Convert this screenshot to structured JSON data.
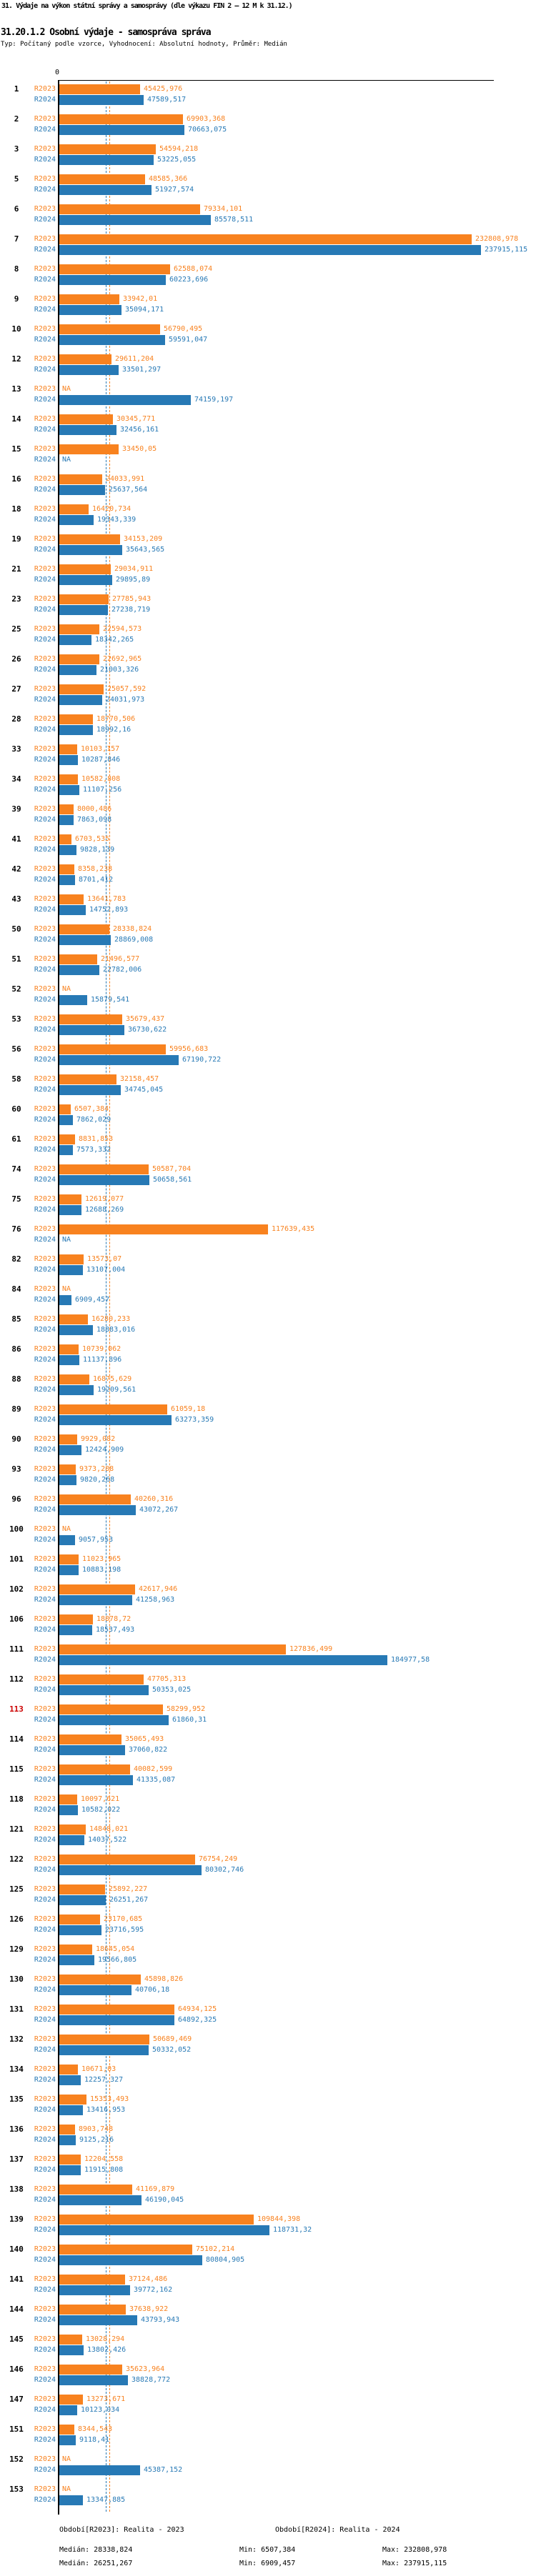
{
  "header": {
    "title": "31. Výdaje na výkon státní správy a samosprávy (dle výkazu FIN 2 – 12 M k 31.12.)",
    "subtitle": "31.20.1.2 Osobní výdaje - samospráva správa",
    "type_line": "Typ: Počítaný podle vzorce, Vyhodnocení: Absolutní hodnoty, Průměr: Medián"
  },
  "footer": {
    "period_r2023": "Období[R2023]: Realita - 2023",
    "period_r2024": "Období[R2024]: Realita - 2024",
    "median_r2023": "Medián: 28338,824",
    "min_r2023": "Min: 6507,384",
    "max_r2023": "Max: 232808,978",
    "median_r2024": "Medián: 26251,267",
    "min_r2024": "Min: 6909,457",
    "max_r2024": "Max: 237915,115"
  },
  "chart_data": {
    "type": "bar",
    "orientation": "horizontal",
    "x_axis": {
      "zero_label": "0",
      "min": 0,
      "max": 237915.115,
      "grid": false
    },
    "legend_position": "bottom",
    "na_label": "NA",
    "highlight_color": "#cc0000",
    "series": [
      {
        "name": "R2023",
        "color": "#f8821f",
        "period": "Realita - 2023",
        "median": 28338.824,
        "min": 6507.384,
        "max": 232808.978
      },
      {
        "name": "R2024",
        "color": "#2779b5",
        "period": "Realita - 2024",
        "median": 26251.267,
        "min": 6909.457,
        "max": 237915.115
      }
    ],
    "rows": [
      {
        "id": "1",
        "r2023": "45425,976",
        "r2024": "47589,517"
      },
      {
        "id": "2",
        "r2023": "69903,368",
        "r2024": "70663,075"
      },
      {
        "id": "3",
        "r2023": "54594,218",
        "r2024": "53225,055"
      },
      {
        "id": "5",
        "r2023": "48585,366",
        "r2024": "51927,574"
      },
      {
        "id": "6",
        "r2023": "79334,101",
        "r2024": "85578,511"
      },
      {
        "id": "7",
        "r2023": "232808,978",
        "r2024": "237915,115"
      },
      {
        "id": "8",
        "r2023": "62588,074",
        "r2024": "60223,696"
      },
      {
        "id": "9",
        "r2023": "33942,01",
        "r2024": "35094,171"
      },
      {
        "id": "10",
        "r2023": "56790,495",
        "r2024": "59591,047"
      },
      {
        "id": "12",
        "r2023": "29611,204",
        "r2024": "33501,297"
      },
      {
        "id": "13",
        "r2023": "NA",
        "r2024": "74159,197"
      },
      {
        "id": "14",
        "r2023": "30345,771",
        "r2024": "32456,161"
      },
      {
        "id": "15",
        "r2023": "33450,05",
        "r2024": "NA"
      },
      {
        "id": "16",
        "r2023": "24033,991",
        "r2024": "25637,564"
      },
      {
        "id": "18",
        "r2023": "16420,734",
        "r2024": "19343,339"
      },
      {
        "id": "19",
        "r2023": "34153,209",
        "r2024": "35643,565"
      },
      {
        "id": "21",
        "r2023": "29034,911",
        "r2024": "29895,89"
      },
      {
        "id": "23",
        "r2023": "27785,943",
        "r2024": "27238,719"
      },
      {
        "id": "25",
        "r2023": "22594,573",
        "r2024": "18342,265"
      },
      {
        "id": "26",
        "r2023": "22692,965",
        "r2024": "21003,326"
      },
      {
        "id": "27",
        "r2023": "25057,592",
        "r2024": "24031,973"
      },
      {
        "id": "28",
        "r2023": "18770,506",
        "r2024": "18992,16"
      },
      {
        "id": "33",
        "r2023": "10103,157",
        "r2024": "10287,846"
      },
      {
        "id": "34",
        "r2023": "10582,808",
        "r2024": "11107,256"
      },
      {
        "id": "39",
        "r2023": "8000,486",
        "r2024": "7863,098"
      },
      {
        "id": "41",
        "r2023": "6703,535",
        "r2024": "9828,139"
      },
      {
        "id": "42",
        "r2023": "8358,238",
        "r2024": "8701,412"
      },
      {
        "id": "43",
        "r2023": "13641,783",
        "r2024": "14752,893"
      },
      {
        "id": "50",
        "r2023": "28338,824",
        "r2024": "28869,008"
      },
      {
        "id": "51",
        "r2023": "21496,577",
        "r2024": "22782,006"
      },
      {
        "id": "52",
        "r2023": "NA",
        "r2024": "15879,541"
      },
      {
        "id": "53",
        "r2023": "35679,437",
        "r2024": "36730,622"
      },
      {
        "id": "56",
        "r2023": "59956,683",
        "r2024": "67190,722"
      },
      {
        "id": "58",
        "r2023": "32158,457",
        "r2024": "34745,045"
      },
      {
        "id": "60",
        "r2023": "6507,384",
        "r2024": "7862,029"
      },
      {
        "id": "61",
        "r2023": "8831,853",
        "r2024": "7573,332"
      },
      {
        "id": "74",
        "r2023": "50587,704",
        "r2024": "50658,561"
      },
      {
        "id": "75",
        "r2023": "12619,077",
        "r2024": "12688,269"
      },
      {
        "id": "76",
        "r2023": "117639,435",
        "r2024": "NA"
      },
      {
        "id": "82",
        "r2023": "13573,07",
        "r2024": "13107,004"
      },
      {
        "id": "84",
        "r2023": "NA",
        "r2024": "6909,457"
      },
      {
        "id": "85",
        "r2023": "16280,233",
        "r2024": "18883,016"
      },
      {
        "id": "86",
        "r2023": "10739,062",
        "r2024": "11137,896"
      },
      {
        "id": "88",
        "r2023": "16875,629",
        "r2024": "19209,561"
      },
      {
        "id": "89",
        "r2023": "61059,18",
        "r2024": "63273,359"
      },
      {
        "id": "90",
        "r2023": "9929,082",
        "r2024": "12424,909"
      },
      {
        "id": "93",
        "r2023": "9373,288",
        "r2024": "9820,268"
      },
      {
        "id": "96",
        "r2023": "40260,316",
        "r2024": "43072,267"
      },
      {
        "id": "100",
        "r2023": "NA",
        "r2024": "9057,953"
      },
      {
        "id": "101",
        "r2023": "11023,965",
        "r2024": "10883,198"
      },
      {
        "id": "102",
        "r2023": "42617,946",
        "r2024": "41258,963"
      },
      {
        "id": "106",
        "r2023": "18878,72",
        "r2024": "18537,493"
      },
      {
        "id": "111",
        "r2023": "127836,499",
        "r2024": "184977,58"
      },
      {
        "id": "112",
        "r2023": "47705,313",
        "r2024": "50353,025"
      },
      {
        "id": "113",
        "r2023": "58299,952",
        "r2024": "61860,31",
        "highlight": true
      },
      {
        "id": "114",
        "r2023": "35065,493",
        "r2024": "37060,822"
      },
      {
        "id": "115",
        "r2023": "40082,599",
        "r2024": "41335,087"
      },
      {
        "id": "118",
        "r2023": "10097,621",
        "r2024": "10582,022"
      },
      {
        "id": "121",
        "r2023": "14848,021",
        "r2024": "14037,522"
      },
      {
        "id": "122",
        "r2023": "76754,249",
        "r2024": "80302,746"
      },
      {
        "id": "125",
        "r2023": "25892,227",
        "r2024": "26251,267"
      },
      {
        "id": "126",
        "r2023": "23170,685",
        "r2024": "23716,595"
      },
      {
        "id": "129",
        "r2023": "18645,054",
        "r2024": "19566,805"
      },
      {
        "id": "130",
        "r2023": "45898,826",
        "r2024": "40706,18"
      },
      {
        "id": "131",
        "r2023": "64934,125",
        "r2024": "64892,325"
      },
      {
        "id": "132",
        "r2023": "50689,469",
        "r2024": "50332,052"
      },
      {
        "id": "134",
        "r2023": "10671,03",
        "r2024": "12257,327"
      },
      {
        "id": "135",
        "r2023": "15353,493",
        "r2024": "13416,953"
      },
      {
        "id": "136",
        "r2023": "8903,748",
        "r2024": "9125,216"
      },
      {
        "id": "137",
        "r2023": "12204,558",
        "r2024": "11915,808"
      },
      {
        "id": "138",
        "r2023": "41169,879",
        "r2024": "46190,045"
      },
      {
        "id": "139",
        "r2023": "109844,398",
        "r2024": "118731,32"
      },
      {
        "id": "140",
        "r2023": "75102,214",
        "r2024": "80804,905"
      },
      {
        "id": "141",
        "r2023": "37124,486",
        "r2024": "39772,162"
      },
      {
        "id": "144",
        "r2023": "37638,922",
        "r2024": "43793,943"
      },
      {
        "id": "145",
        "r2023": "13028,294",
        "r2024": "13802,426"
      },
      {
        "id": "146",
        "r2023": "35623,964",
        "r2024": "38828,772"
      },
      {
        "id": "147",
        "r2023": "13273,671",
        "r2024": "10123,034"
      },
      {
        "id": "151",
        "r2023": "8344,543",
        "r2024": "9118,41"
      },
      {
        "id": "152",
        "r2023": "NA",
        "r2024": "45387,152"
      },
      {
        "id": "153",
        "r2023": "NA",
        "r2024": "13347,885"
      }
    ]
  }
}
